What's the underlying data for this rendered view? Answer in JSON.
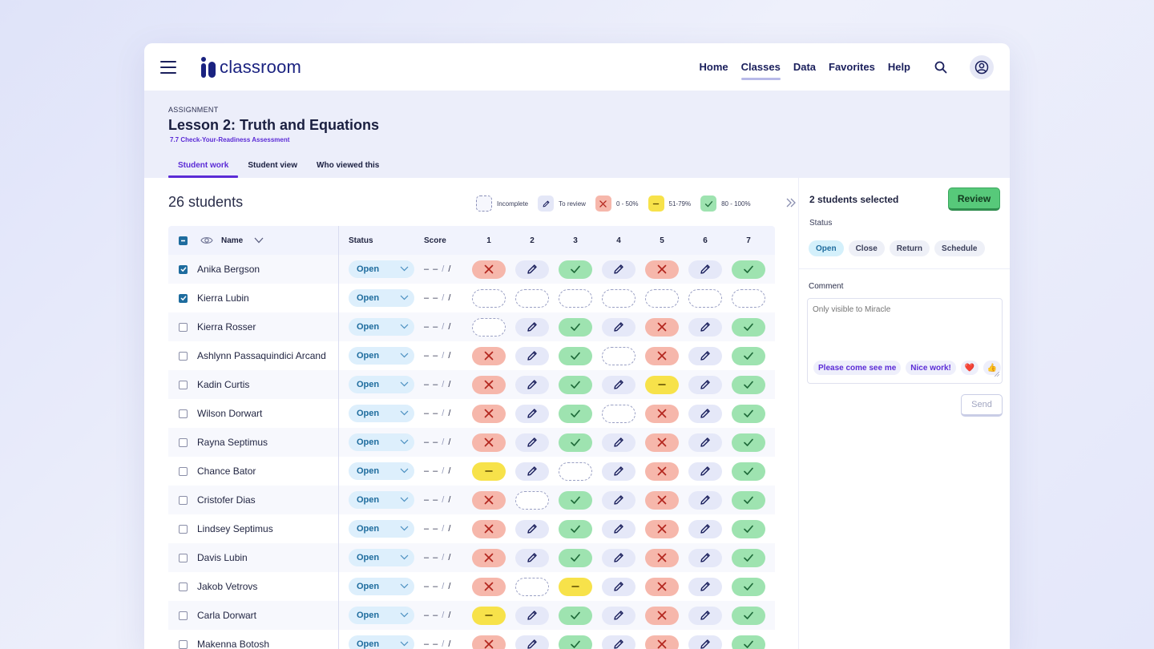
{
  "app": {
    "brand": "classroom",
    "nav": [
      "Home",
      "Classes",
      "Data",
      "Favorites",
      "Help"
    ],
    "active_nav": "Classes"
  },
  "assignment": {
    "eyebrow": "ASSIGNMENT",
    "title": "Lesson 2: Truth and Equations",
    "subtitle": "7.7 Check-Your-Readiness Assessment",
    "tabs": [
      "Student work",
      "Student view",
      "Who viewed this"
    ],
    "active_tab": "Student work"
  },
  "summary": {
    "count": "26 students",
    "legend": [
      {
        "kind": "incomplete",
        "label": "Incomplete"
      },
      {
        "kind": "review",
        "label": "To review"
      },
      {
        "kind": "red",
        "label": "0 - 50%"
      },
      {
        "kind": "yellow",
        "label": "51-79%"
      },
      {
        "kind": "green",
        "label": "80 - 100%"
      }
    ]
  },
  "table": {
    "headers": {
      "name": "Name",
      "status": "Status",
      "score": "Score",
      "questions": [
        "1",
        "2",
        "3",
        "4",
        "5",
        "6",
        "7"
      ]
    },
    "score_placeholder": "– –",
    "rows": [
      {
        "name": "Anika Bergson",
        "checked": true,
        "status": "Open",
        "q": [
          "red",
          "review",
          "green",
          "review",
          "red",
          "review",
          "green"
        ]
      },
      {
        "name": "Kierra Lubin",
        "checked": true,
        "status": "Open",
        "q": [
          "incomplete",
          "incomplete",
          "incomplete",
          "incomplete",
          "incomplete",
          "incomplete",
          "incomplete"
        ]
      },
      {
        "name": "Kierra Rosser",
        "checked": false,
        "status": "Open",
        "q": [
          "incomplete",
          "review",
          "green",
          "review",
          "red",
          "review",
          "green"
        ]
      },
      {
        "name": "Ashlynn Passaquindici Arcand",
        "checked": false,
        "status": "Open",
        "q": [
          "red",
          "review",
          "green",
          "incomplete",
          "red",
          "review",
          "green"
        ]
      },
      {
        "name": "Kadin Curtis",
        "checked": false,
        "status": "Open",
        "q": [
          "red",
          "review",
          "green",
          "review",
          "yellow",
          "review",
          "green"
        ]
      },
      {
        "name": "Wilson Dorwart",
        "checked": false,
        "status": "Open",
        "q": [
          "red",
          "review",
          "green",
          "incomplete",
          "red",
          "review",
          "green"
        ]
      },
      {
        "name": "Rayna Septimus",
        "checked": false,
        "status": "Open",
        "q": [
          "red",
          "review",
          "green",
          "review",
          "red",
          "review",
          "green"
        ]
      },
      {
        "name": "Chance Bator",
        "checked": false,
        "status": "Open",
        "q": [
          "yellow",
          "review",
          "incomplete",
          "review",
          "red",
          "review",
          "green"
        ]
      },
      {
        "name": "Cristofer Dias",
        "checked": false,
        "status": "Open",
        "q": [
          "red",
          "incomplete",
          "green",
          "review",
          "red",
          "review",
          "green"
        ]
      },
      {
        "name": "Lindsey Septimus",
        "checked": false,
        "status": "Open",
        "q": [
          "red",
          "review",
          "green",
          "review",
          "red",
          "review",
          "green"
        ]
      },
      {
        "name": "Davis Lubin",
        "checked": false,
        "status": "Open",
        "q": [
          "red",
          "review",
          "green",
          "review",
          "red",
          "review",
          "green"
        ]
      },
      {
        "name": "Jakob Vetrovs",
        "checked": false,
        "status": "Open",
        "q": [
          "red",
          "incomplete",
          "yellow",
          "review",
          "red",
          "review",
          "green"
        ]
      },
      {
        "name": "Carla Dorwart",
        "checked": false,
        "status": "Open",
        "q": [
          "yellow",
          "review",
          "green",
          "review",
          "red",
          "review",
          "green"
        ]
      },
      {
        "name": "Makenna Botosh",
        "checked": false,
        "status": "Open",
        "q": [
          "red",
          "review",
          "green",
          "review",
          "red",
          "review",
          "green"
        ]
      }
    ]
  },
  "side": {
    "selected_text": "2 students selected",
    "review_label": "Review",
    "status_label": "Status",
    "status_options": [
      "Open",
      "Close",
      "Return",
      "Schedule"
    ],
    "status_selected": "Open",
    "comment_label": "Comment",
    "comment_placeholder": "Only visible to Miracle",
    "quick_replies": [
      "Please come see me",
      "Nice work!"
    ],
    "emoji_replies": [
      "❤️",
      "👍"
    ],
    "send_label": "Send"
  },
  "colors": {
    "brand": "#1a2280",
    "accent": "#5b2bd6",
    "red": "#f6b7ab",
    "yellow": "#f7e24a",
    "green": "#9ee3b0",
    "review": "#e5e8f8",
    "status_blue": "#1e6c9e"
  }
}
